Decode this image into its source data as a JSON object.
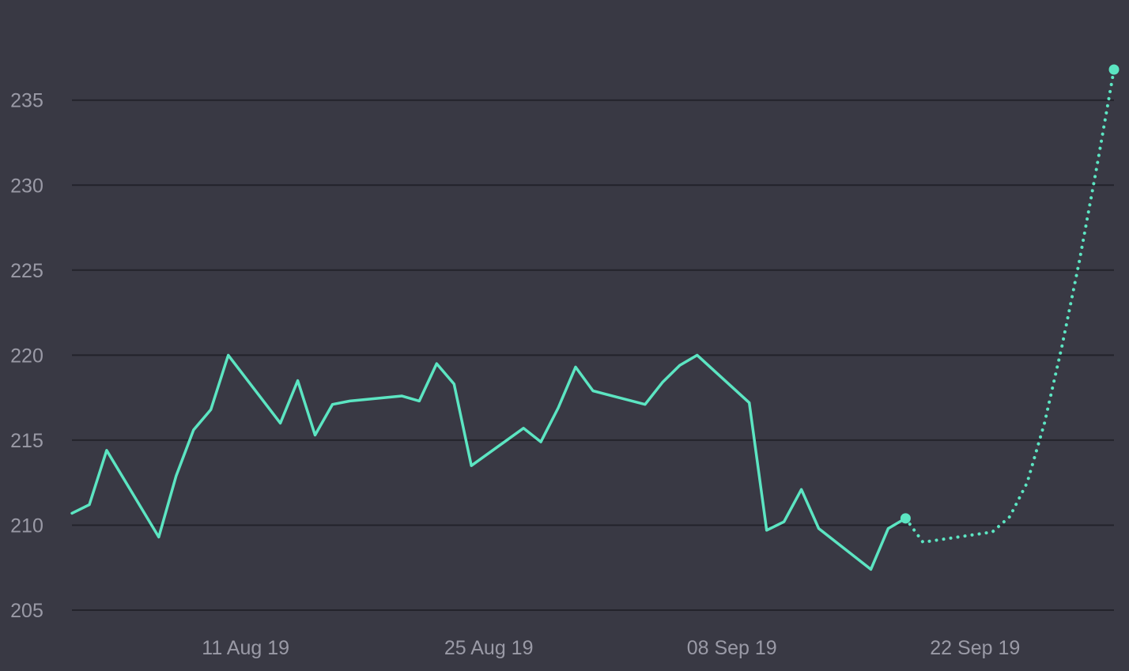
{
  "colors": {
    "background": "#393944",
    "grid": "#23232b",
    "tick_text": "#9a9aa6",
    "series": "#5ce5c2"
  },
  "chart_data": {
    "type": "line",
    "title": "",
    "xlabel": "",
    "ylabel": "",
    "grid": true,
    "legend": "none",
    "ylim": [
      205,
      236.8
    ],
    "xlim": [
      "2019-08-01",
      "2019-09-30"
    ],
    "y_ticks": [
      {
        "value": 205,
        "label": "205"
      },
      {
        "value": 210,
        "label": "210"
      },
      {
        "value": 215,
        "label": "215"
      },
      {
        "value": 220,
        "label": "220"
      },
      {
        "value": 225,
        "label": "225"
      },
      {
        "value": 230,
        "label": "230"
      },
      {
        "value": 235,
        "label": "235"
      }
    ],
    "x_ticks": [
      {
        "value": "2019-08-11",
        "label": "11 Aug 19"
      },
      {
        "value": "2019-08-25",
        "label": "25 Aug 19"
      },
      {
        "value": "2019-09-08",
        "label": "08 Sep 19"
      },
      {
        "value": "2019-09-22",
        "label": "22 Sep 19"
      }
    ],
    "series": [
      {
        "style": "solid",
        "x": [
          "2019-08-01",
          "2019-08-02",
          "2019-08-03",
          "2019-08-06",
          "2019-08-07",
          "2019-08-08",
          "2019-08-09",
          "2019-08-10",
          "2019-08-13",
          "2019-08-14",
          "2019-08-15",
          "2019-08-16",
          "2019-08-17",
          "2019-08-20",
          "2019-08-21",
          "2019-08-22",
          "2019-08-23",
          "2019-08-24",
          "2019-08-27",
          "2019-08-28",
          "2019-08-29",
          "2019-08-30",
          "2019-08-31",
          "2019-09-03",
          "2019-09-04",
          "2019-09-05",
          "2019-09-06",
          "2019-09-09",
          "2019-09-10",
          "2019-09-11",
          "2019-09-12",
          "2019-09-13",
          "2019-09-16",
          "2019-09-17",
          "2019-09-18"
        ],
        "y": [
          210.7,
          211.2,
          214.4,
          209.3,
          212.9,
          215.6,
          216.8,
          220.0,
          216.0,
          218.5,
          215.3,
          217.1,
          217.3,
          217.6,
          217.3,
          219.5,
          218.3,
          213.5,
          215.7,
          214.9,
          216.9,
          219.3,
          217.9,
          217.1,
          218.4,
          219.4,
          220.0,
          217.2,
          209.7,
          210.2,
          212.1,
          209.8,
          207.4,
          209.8,
          210.4
        ]
      },
      {
        "style": "dotted",
        "x": [
          "2019-09-18",
          "2019-09-19",
          "2019-09-23",
          "2019-09-24",
          "2019-09-25",
          "2019-09-26",
          "2019-09-27",
          "2019-09-28",
          "2019-09-29",
          "2019-09-30"
        ],
        "y": [
          210.4,
          209.0,
          209.6,
          210.5,
          212.5,
          216.0,
          220.5,
          225.5,
          231.0,
          236.8
        ]
      }
    ],
    "endpoints": [
      {
        "x": "2019-09-18",
        "y": 210.4
      },
      {
        "x": "2019-09-30",
        "y": 236.8
      }
    ]
  }
}
